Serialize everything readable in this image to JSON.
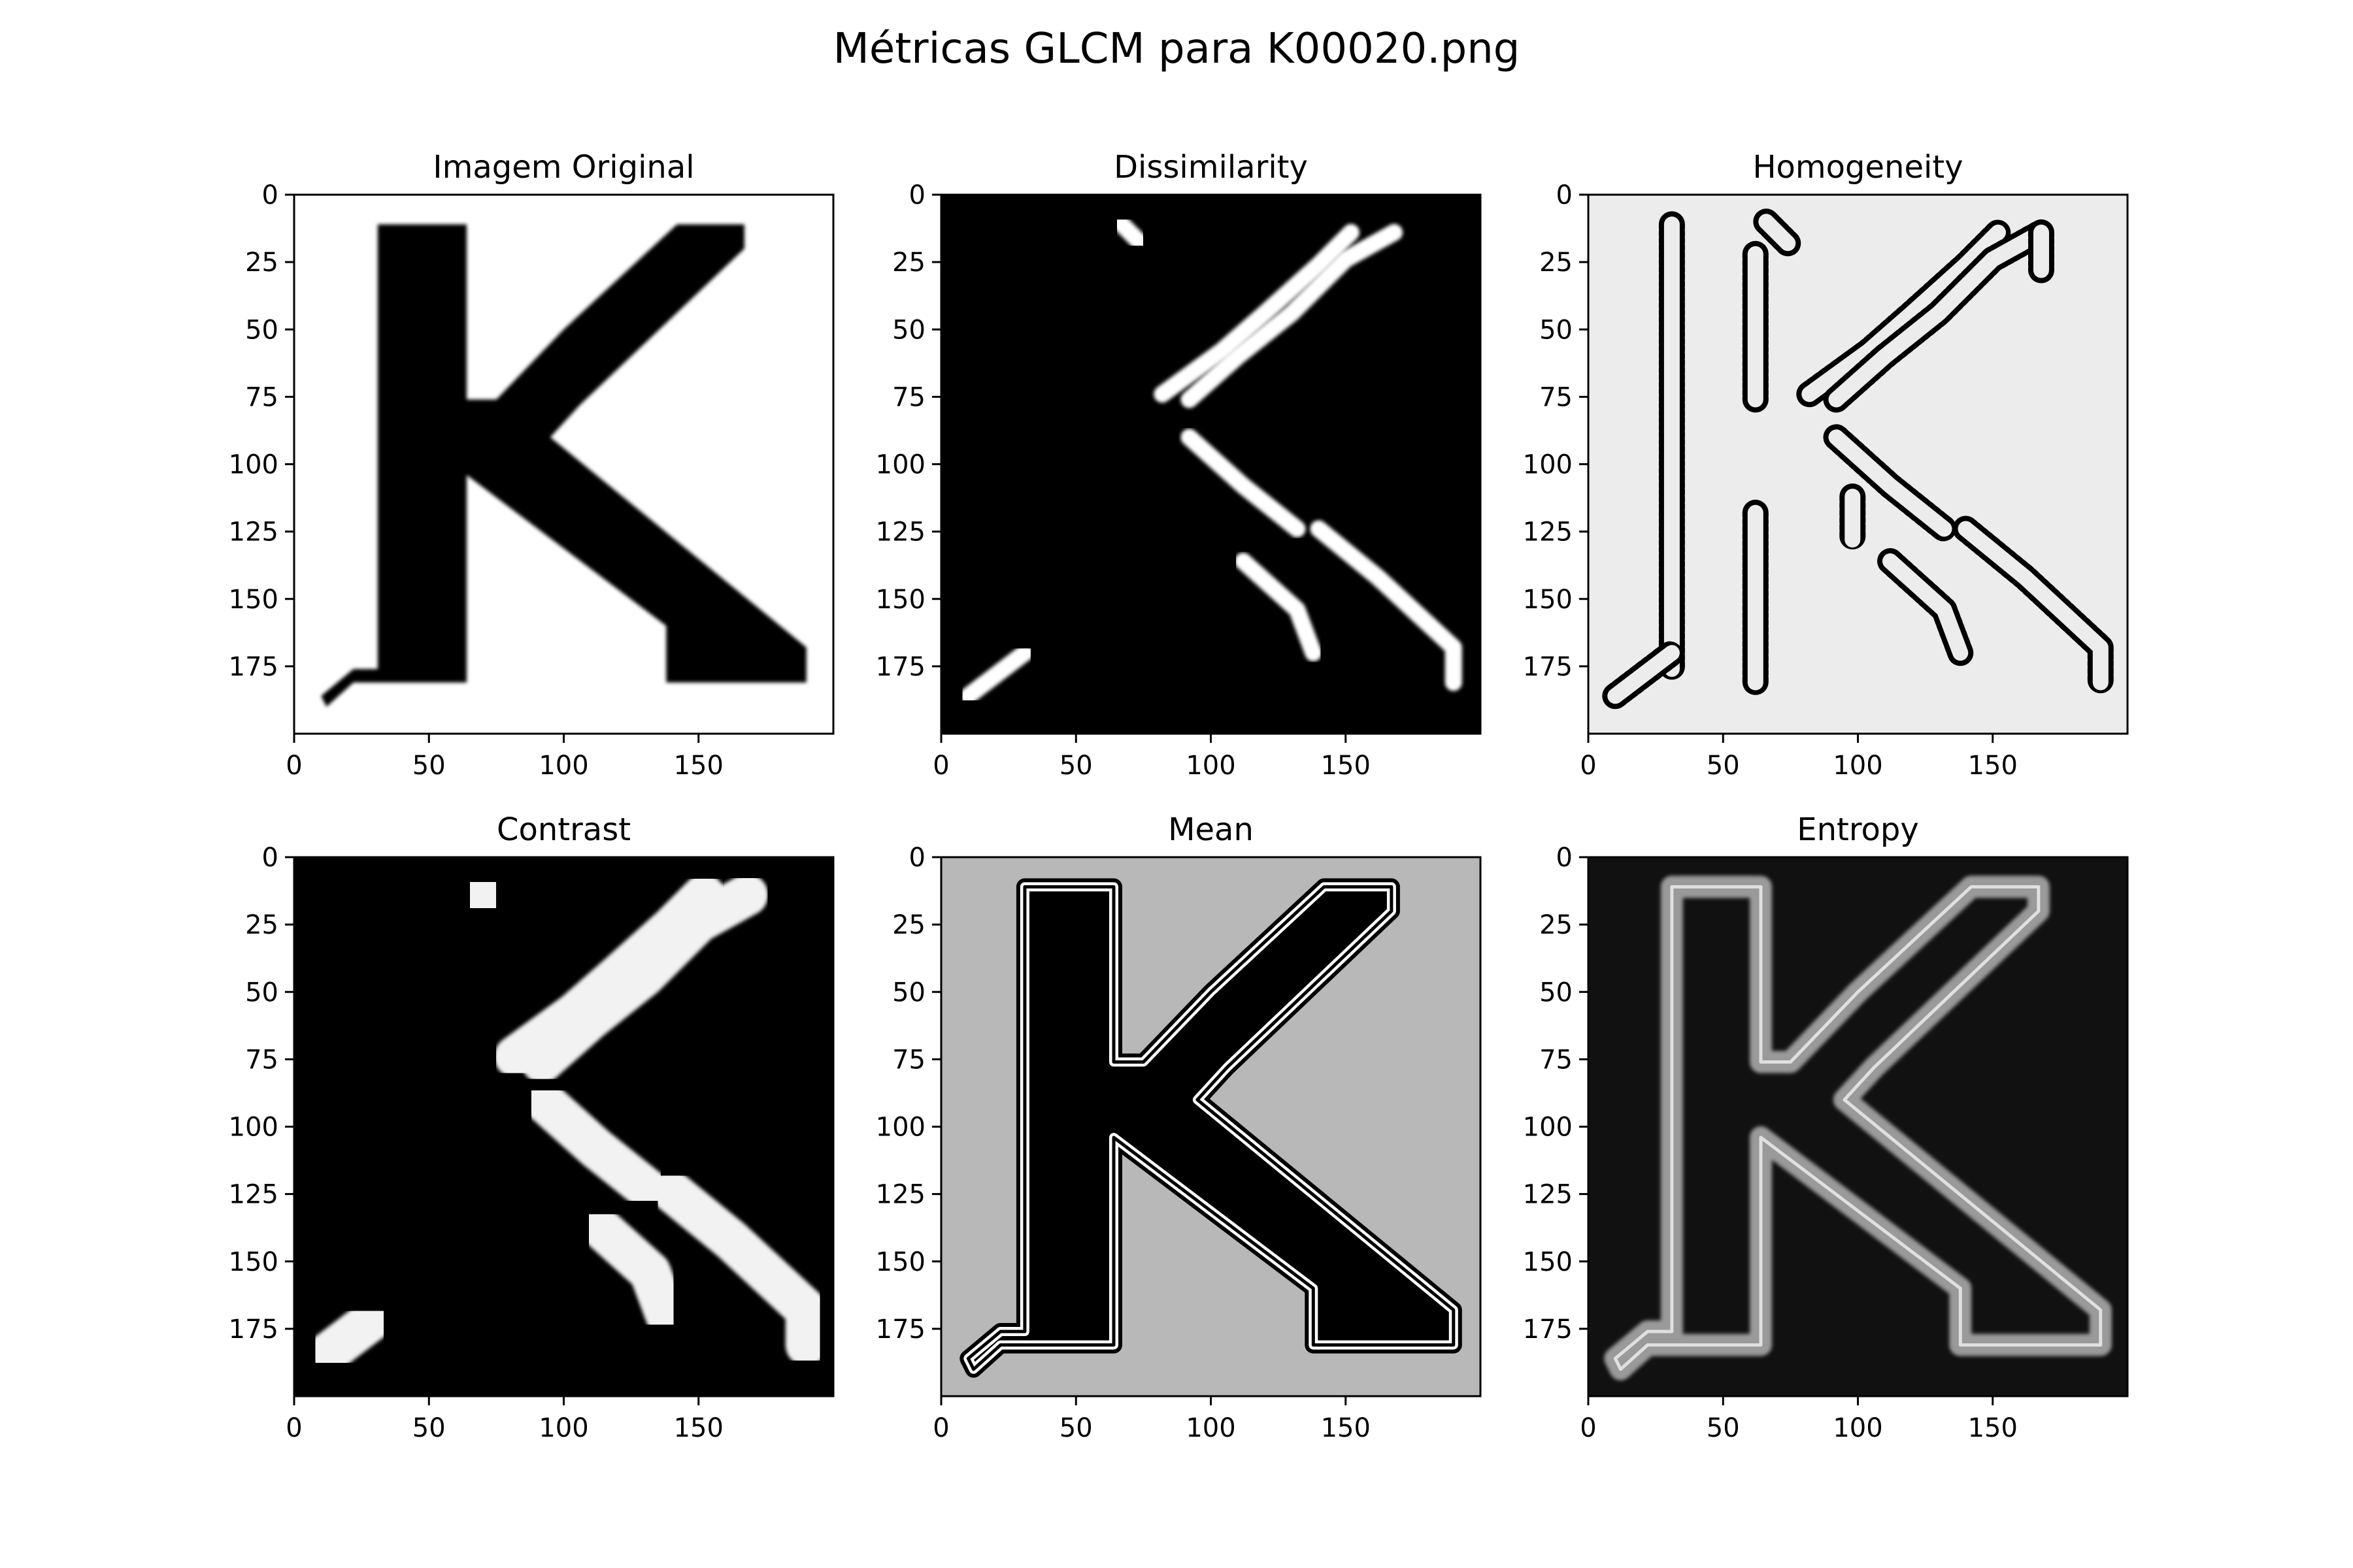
{
  "figure": {
    "title": "Métricas GLCM para K00020.png"
  },
  "chart_data": [
    {
      "type": "heatmap",
      "title": "Imagem Original",
      "colormap": "gray",
      "xlim": [
        0,
        200
      ],
      "ylim": [
        200,
        0
      ],
      "xticks": [
        0,
        50,
        100,
        150
      ],
      "yticks": [
        0,
        25,
        50,
        75,
        100,
        125,
        150,
        175
      ],
      "background": "#ffffff",
      "foreground": "#000000",
      "render": "glyph"
    },
    {
      "type": "heatmap",
      "title": "Dissimilarity",
      "colormap": "gray",
      "xlim": [
        0,
        200
      ],
      "ylim": [
        200,
        0
      ],
      "xticks": [
        0,
        50,
        100,
        150
      ],
      "yticks": [
        0,
        25,
        50,
        75,
        100,
        125,
        150,
        175
      ],
      "background": "#000000",
      "foreground": "#ffffff",
      "render": "edges"
    },
    {
      "type": "heatmap",
      "title": "Homogeneity",
      "colormap": "gray",
      "xlim": [
        0,
        200
      ],
      "ylim": [
        200,
        0
      ],
      "xticks": [
        0,
        50,
        100,
        150
      ],
      "yticks": [
        0,
        25,
        50,
        75,
        100,
        125,
        150,
        175
      ],
      "background": "#ececec",
      "foreground": "#000000",
      "render": "edges-outline"
    },
    {
      "type": "heatmap",
      "title": "Contrast",
      "colormap": "gray",
      "xlim": [
        0,
        200
      ],
      "ylim": [
        200,
        0
      ],
      "xticks": [
        0,
        50,
        100,
        150
      ],
      "yticks": [
        0,
        25,
        50,
        75,
        100,
        125,
        150,
        175
      ],
      "background": "#000000",
      "foreground": "#f2f2f2",
      "render": "edges-thick"
    },
    {
      "type": "heatmap",
      "title": "Mean",
      "colormap": "gray",
      "xlim": [
        0,
        200
      ],
      "ylim": [
        200,
        0
      ],
      "xticks": [
        0,
        50,
        100,
        150
      ],
      "yticks": [
        0,
        25,
        50,
        75,
        100,
        125,
        150,
        175
      ],
      "background": "#b8b8b8",
      "foreground": "#000000",
      "render": "glyph-outline"
    },
    {
      "type": "heatmap",
      "title": "Entropy",
      "colormap": "gray",
      "xlim": [
        0,
        200
      ],
      "ylim": [
        200,
        0
      ],
      "xticks": [
        0,
        50,
        100,
        150
      ],
      "yticks": [
        0,
        25,
        50,
        75,
        100,
        125,
        150,
        175
      ],
      "background": "#111111",
      "foreground": "#9a9a9a",
      "render": "outline"
    }
  ]
}
